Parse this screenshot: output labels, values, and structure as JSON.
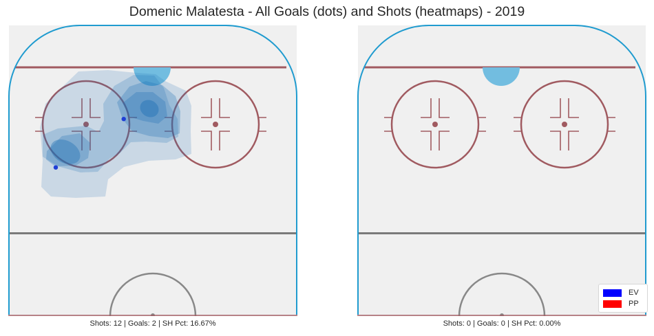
{
  "title": "Domenic Malatesta - All Goals (dots) and Shots (heatmaps) - 2019",
  "colors": {
    "ice": "#f0f0f0",
    "boards": "#1f9bcf",
    "red_line": "#a05a60",
    "blue_line": "#7a7a7a",
    "crease": "#72bde0",
    "heat": "#2171b5",
    "goal_dot": "#1f3fd6"
  },
  "legend": [
    {
      "label": "EV",
      "color": "#0000ff"
    },
    {
      "label": "PP",
      "color": "#ff0000"
    }
  ],
  "panels": [
    {
      "id": "left",
      "caption": "Shots: 12 | Goals: 2 | SH Pct: 16.67%",
      "goals": [
        {
          "x": -9,
          "y": 73
        },
        {
          "x": -30,
          "y": 58
        }
      ]
    },
    {
      "id": "right",
      "caption": "Shots: 0 | Goals: 0 | SH Pct: 0.00%",
      "goals": []
    }
  ],
  "chart_data": {
    "type": "heatmap",
    "title": "Domenic Malatesta - All Goals (dots) and Shots (heatmaps) - 2019",
    "subplots": [
      {
        "caption": "Shots: 12 | Goals: 2 | SH Pct: 16.67%",
        "shots": 12,
        "goals": 2,
        "sh_pct": 16.67,
        "goal_points": [
          {
            "x": -9,
            "y": 73
          },
          {
            "x": -30,
            "y": 58
          }
        ],
        "heat_peaks": [
          {
            "x": -5,
            "y": 68
          },
          {
            "x": -32,
            "y": 55
          }
        ]
      },
      {
        "caption": "Shots: 0 | Goals: 0 | SH Pct: 0.00%",
        "shots": 0,
        "goals": 0,
        "sh_pct": 0.0,
        "goal_points": [],
        "heat_peaks": []
      }
    ],
    "legend": [
      "EV",
      "PP"
    ]
  }
}
